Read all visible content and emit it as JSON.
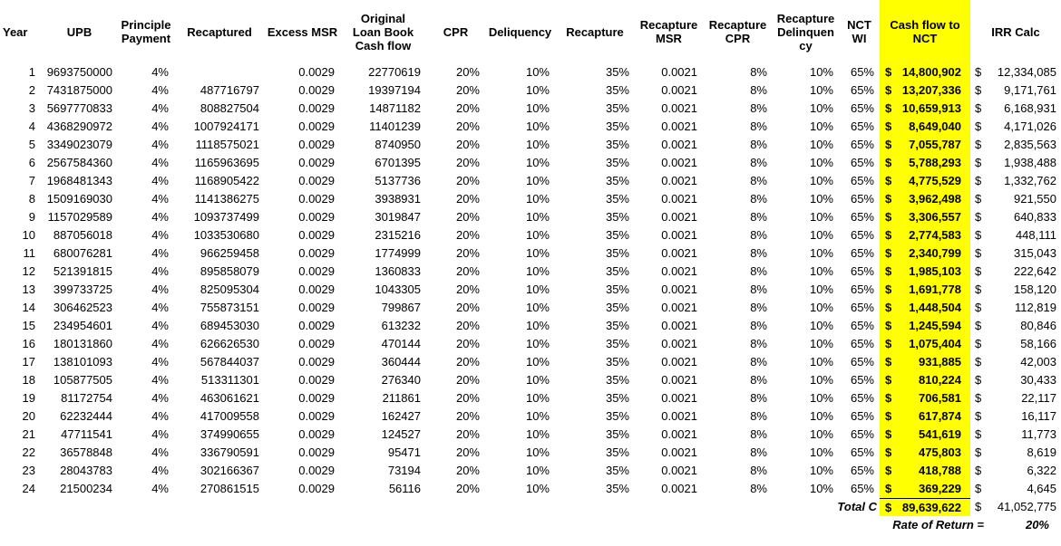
{
  "currency": "$",
  "colors": {
    "highlight": "#FFFF00",
    "text": "#000000",
    "background": "#FFFFFF"
  },
  "columns": [
    {
      "key": "year",
      "label": "Year"
    },
    {
      "key": "upb",
      "label": "UPB"
    },
    {
      "key": "principle_payment",
      "label": "Principle\nPayment"
    },
    {
      "key": "recaptured",
      "label": "Recaptured"
    },
    {
      "key": "excess_msr",
      "label": "Excess MSR"
    },
    {
      "key": "olb_cashflow",
      "label": "Original\nLoan Book\nCash flow"
    },
    {
      "key": "cpr",
      "label": "CPR"
    },
    {
      "key": "deliquency",
      "label": "Deliquency"
    },
    {
      "key": "recapture",
      "label": "Recapture"
    },
    {
      "key": "recapture_msr",
      "label": "Recapture\nMSR"
    },
    {
      "key": "recapture_cpr",
      "label": "Recapture\nCPR"
    },
    {
      "key": "recapture_delinquency",
      "label": "Recapture\nDelinquen\ncy"
    },
    {
      "key": "nct_wi",
      "label": "NCT\nWI"
    },
    {
      "key": "cashflow_nct",
      "label": "Cash flow to\nNCT"
    },
    {
      "key": "irr_calc",
      "label": "IRR Calc"
    }
  ],
  "constants": {
    "principle_payment": "4%",
    "excess_msr": "0.0029",
    "cpr": "20%",
    "deliquency": "10%",
    "recapture": "35%",
    "recapture_msr": "0.0021",
    "recapture_cpr": "8%",
    "recapture_delinquency": "10%",
    "nct_wi": "65%"
  },
  "rows": [
    {
      "year": "1",
      "upb": "9693750000",
      "recaptured": "",
      "olb_cashflow": "22770619",
      "cashflow_nct": "14,800,902",
      "irr_calc": "12,334,085"
    },
    {
      "year": "2",
      "upb": "7431875000",
      "recaptured": "487716797",
      "olb_cashflow": "19397194",
      "cashflow_nct": "13,207,336",
      "irr_calc": "9,171,761"
    },
    {
      "year": "3",
      "upb": "5697770833",
      "recaptured": "808827504",
      "olb_cashflow": "14871182",
      "cashflow_nct": "10,659,913",
      "irr_calc": "6,168,931"
    },
    {
      "year": "4",
      "upb": "4368290972",
      "recaptured": "1007924171",
      "olb_cashflow": "11401239",
      "cashflow_nct": "8,649,040",
      "irr_calc": "4,171,026"
    },
    {
      "year": "5",
      "upb": "3349023079",
      "recaptured": "1118575021",
      "olb_cashflow": "8740950",
      "cashflow_nct": "7,055,787",
      "irr_calc": "2,835,563"
    },
    {
      "year": "6",
      "upb": "2567584360",
      "recaptured": "1165963695",
      "olb_cashflow": "6701395",
      "cashflow_nct": "5,788,293",
      "irr_calc": "1,938,488"
    },
    {
      "year": "7",
      "upb": "1968481343",
      "recaptured": "1168905422",
      "olb_cashflow": "5137736",
      "cashflow_nct": "4,775,529",
      "irr_calc": "1,332,762"
    },
    {
      "year": "8",
      "upb": "1509169030",
      "recaptured": "1141386275",
      "olb_cashflow": "3938931",
      "cashflow_nct": "3,962,498",
      "irr_calc": "921,550"
    },
    {
      "year": "9",
      "upb": "1157029589",
      "recaptured": "1093737499",
      "olb_cashflow": "3019847",
      "cashflow_nct": "3,306,557",
      "irr_calc": "640,833"
    },
    {
      "year": "10",
      "upb": "887056018",
      "recaptured": "1033530680",
      "olb_cashflow": "2315216",
      "cashflow_nct": "2,774,583",
      "irr_calc": "448,111"
    },
    {
      "year": "11",
      "upb": "680076281",
      "recaptured": "966259458",
      "olb_cashflow": "1774999",
      "cashflow_nct": "2,340,799",
      "irr_calc": "315,043"
    },
    {
      "year": "12",
      "upb": "521391815",
      "recaptured": "895858079",
      "olb_cashflow": "1360833",
      "cashflow_nct": "1,985,103",
      "irr_calc": "222,642"
    },
    {
      "year": "13",
      "upb": "399733725",
      "recaptured": "825095304",
      "olb_cashflow": "1043305",
      "cashflow_nct": "1,691,778",
      "irr_calc": "158,120"
    },
    {
      "year": "14",
      "upb": "306462523",
      "recaptured": "755873151",
      "olb_cashflow": "799867",
      "cashflow_nct": "1,448,504",
      "irr_calc": "112,819"
    },
    {
      "year": "15",
      "upb": "234954601",
      "recaptured": "689453030",
      "olb_cashflow": "613232",
      "cashflow_nct": "1,245,594",
      "irr_calc": "80,846"
    },
    {
      "year": "16",
      "upb": "180131860",
      "recaptured": "626626530",
      "olb_cashflow": "470144",
      "cashflow_nct": "1,075,404",
      "irr_calc": "58,166"
    },
    {
      "year": "17",
      "upb": "138101093",
      "recaptured": "567844037",
      "olb_cashflow": "360444",
      "cashflow_nct": "931,885",
      "irr_calc": "42,003"
    },
    {
      "year": "18",
      "upb": "105877505",
      "recaptured": "513311301",
      "olb_cashflow": "276340",
      "cashflow_nct": "810,224",
      "irr_calc": "30,433"
    },
    {
      "year": "19",
      "upb": "81172754",
      "recaptured": "463061621",
      "olb_cashflow": "211861",
      "cashflow_nct": "706,581",
      "irr_calc": "22,117"
    },
    {
      "year": "20",
      "upb": "62232444",
      "recaptured": "417009558",
      "olb_cashflow": "162427",
      "cashflow_nct": "617,874",
      "irr_calc": "16,117"
    },
    {
      "year": "21",
      "upb": "47711541",
      "recaptured": "374990655",
      "olb_cashflow": "124527",
      "cashflow_nct": "541,619",
      "irr_calc": "11,773"
    },
    {
      "year": "22",
      "upb": "36578848",
      "recaptured": "336790591",
      "olb_cashflow": "95471",
      "cashflow_nct": "475,803",
      "irr_calc": "8,619"
    },
    {
      "year": "23",
      "upb": "28043783",
      "recaptured": "302166367",
      "olb_cashflow": "73194",
      "cashflow_nct": "418,788",
      "irr_calc": "6,322"
    },
    {
      "year": "24",
      "upb": "21500234",
      "recaptured": "270861515",
      "olb_cashflow": "56116",
      "cashflow_nct": "369,229",
      "irr_calc": "4,645"
    }
  ],
  "totals": {
    "label": "Total C",
    "cashflow_nct": "89,639,622",
    "irr_calc": "41,052,775",
    "rate_label": "Rate of Return =",
    "rate_value": "20%"
  }
}
